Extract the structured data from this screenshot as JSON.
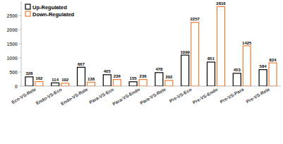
{
  "chart_data": {
    "type": "bar",
    "categories": [
      "Eco-VS-Rele",
      "Endo-VS-Eco",
      "Endo-VS-Rele",
      "Para-VS-Eco",
      "Para-VS-Endo",
      "Para-VS-Rele",
      "Pre-VS-Eco",
      "Pre-VS-Endo",
      "Pre-VS-Para",
      "Pre-VS-Rele"
    ],
    "series": [
      {
        "name": "Up-Regulated",
        "color": "#000000",
        "values": [
          328,
          114,
          667,
          405,
          155,
          478,
          1099,
          851,
          453,
          584
        ]
      },
      {
        "name": "Down-Regulated",
        "color": "#ed7d31",
        "values": [
          162,
          102,
          138,
          236,
          236,
          202,
          2257,
          2816,
          1425,
          824
        ]
      }
    ],
    "ylim": [
      0,
      3000
    ],
    "yticks": [
      0,
      500,
      1000,
      1500,
      2000,
      2500
    ],
    "grid": false,
    "legend": "top-left",
    "data_labels": true
  }
}
